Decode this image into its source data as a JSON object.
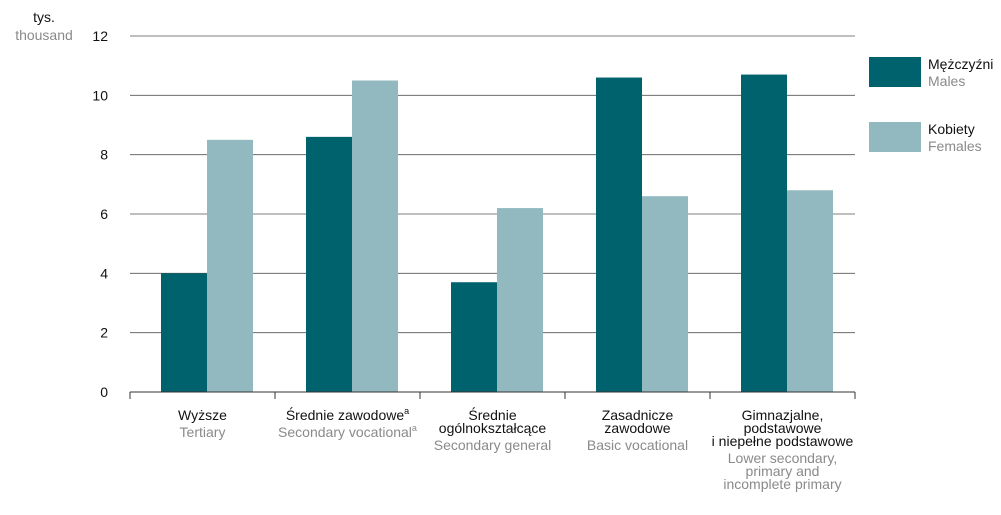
{
  "chart_data": {
    "type": "bar",
    "unit": {
      "pl": "tys.",
      "en": "thousand"
    },
    "ylim": [
      0,
      12
    ],
    "yticks": [
      0,
      2,
      4,
      6,
      8,
      10,
      12
    ],
    "grid": true,
    "legend_position": "right",
    "categories": [
      {
        "pl": [
          "Wyższe"
        ],
        "en": [
          "Tertiary"
        ]
      },
      {
        "pl": [
          "Średnie zawodowe"
        ],
        "pl_sup": "a",
        "en": [
          "Secondary vocational"
        ],
        "en_sup": "a"
      },
      {
        "pl": [
          "Średnie",
          "ogólnokształcące"
        ],
        "en": [
          "Secondary general"
        ]
      },
      {
        "pl": [
          "Zasadnicze",
          "zawodowe"
        ],
        "en": [
          "Basic vocational"
        ]
      },
      {
        "pl": [
          "Gimnazjalne,",
          "podstawowe",
          "i niepełne podstawowe"
        ],
        "en": [
          "Lower secondary,",
          "primary and",
          "incomplete primary"
        ]
      }
    ],
    "series": [
      {
        "name": "Mężczyźni",
        "name_en": "Males",
        "color": "#00626d",
        "values": [
          4.0,
          8.6,
          3.7,
          10.6,
          10.7
        ]
      },
      {
        "name": "Kobiety",
        "name_en": "Females",
        "color": "#93b9c0",
        "values": [
          8.5,
          10.5,
          6.2,
          6.6,
          6.8
        ]
      }
    ]
  }
}
